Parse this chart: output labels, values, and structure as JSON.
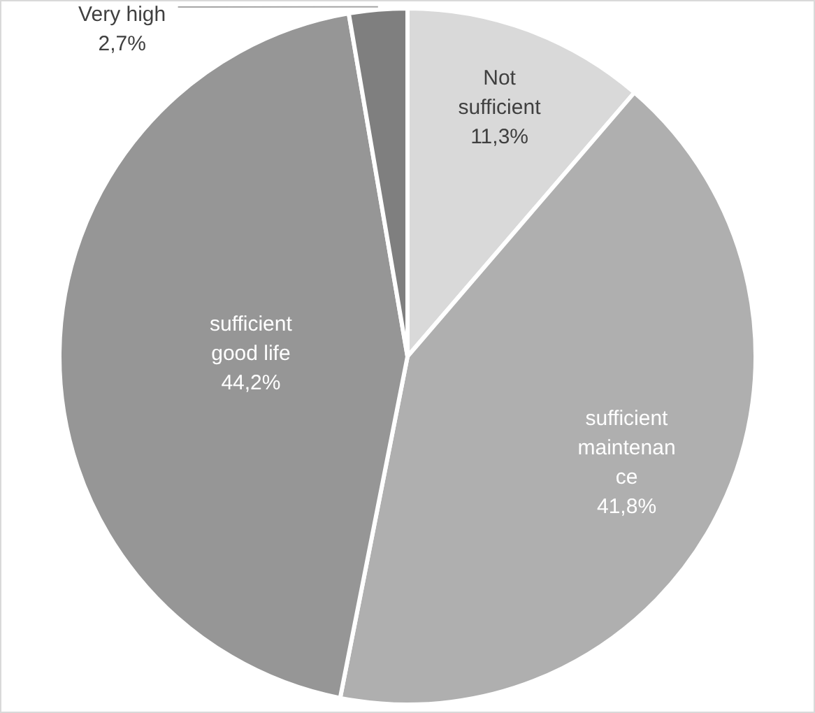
{
  "chart_data": {
    "type": "pie",
    "categories": [
      "Not sufficient",
      "sufficient maintenance",
      "sufficient good life",
      "Very high"
    ],
    "values": [
      11.3,
      41.8,
      44.2,
      2.7
    ],
    "colors": [
      "#d9d9d9",
      "#afafaf",
      "#969696",
      "#7f7f7f"
    ],
    "value_labels": [
      "11,3%",
      "41,8%",
      "44,2%",
      "2,7%"
    ],
    "legend": false
  }
}
